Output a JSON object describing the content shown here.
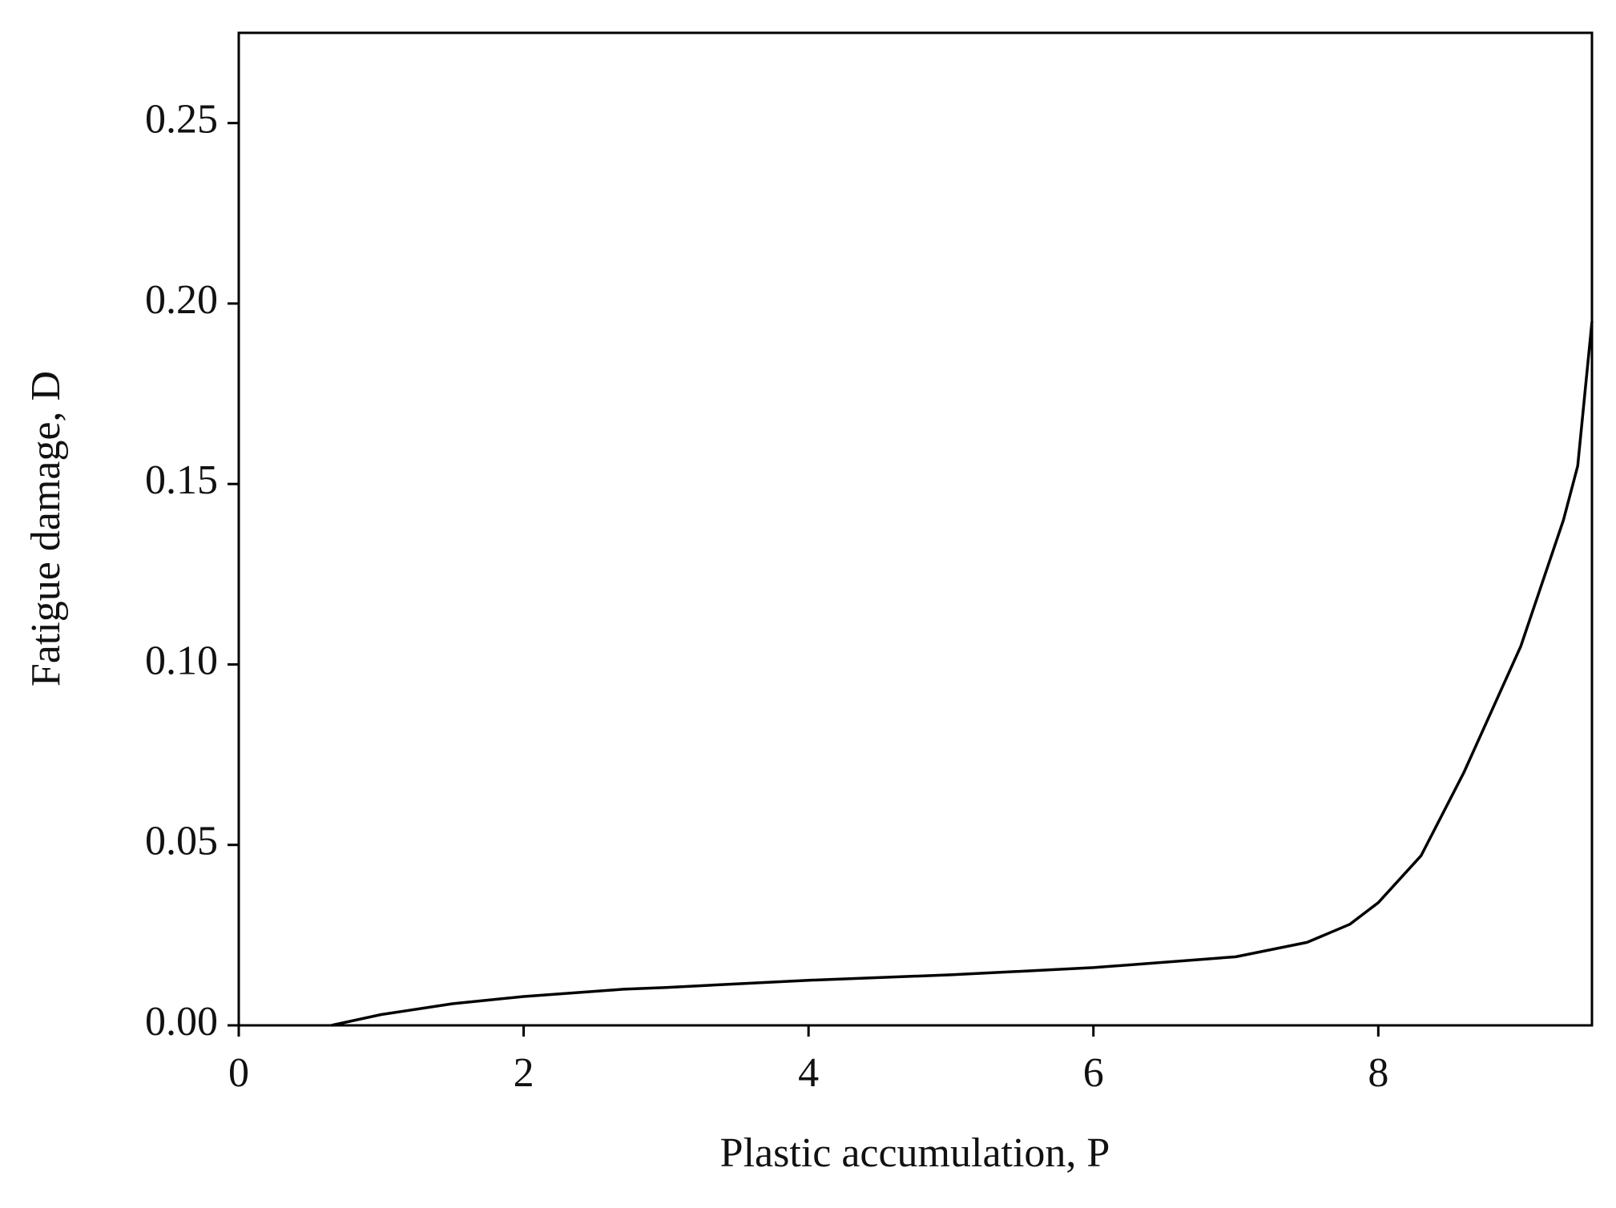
{
  "chart_data": {
    "type": "line",
    "xlabel": "Plastic accumulation, P",
    "ylabel": "Fatigue damage, D",
    "xlim": [
      0,
      9.5
    ],
    "ylim": [
      0,
      0.275
    ],
    "xticks": [
      0,
      2,
      4,
      6,
      8
    ],
    "yticks": [
      {
        "value": 0,
        "label": "0.00"
      },
      {
        "value": 0.05,
        "label": "0.05"
      },
      {
        "value": 0.1,
        "label": "0.10"
      },
      {
        "value": 0.15,
        "label": "0.15"
      },
      {
        "value": 0.2,
        "label": "0.20"
      },
      {
        "value": 0.25,
        "label": "0.25"
      }
    ],
    "series": [
      {
        "color": "#000000",
        "x": [
          0.65,
          1.0,
          1.5,
          2.0,
          2.7,
          3.0,
          4.0,
          5.0,
          6.0,
          7.0,
          7.5,
          7.8,
          8.0,
          8.3,
          8.6,
          9.0,
          9.3,
          9.4,
          9.45,
          9.5
        ],
        "values": [
          0,
          0.003,
          0.006,
          0.008,
          0.01,
          0.0105,
          0.0125,
          0.014,
          0.016,
          0.019,
          0.023,
          0.028,
          0.034,
          0.047,
          0.07,
          0.105,
          0.14,
          0.155,
          0.175,
          0.195
        ]
      }
    ]
  }
}
